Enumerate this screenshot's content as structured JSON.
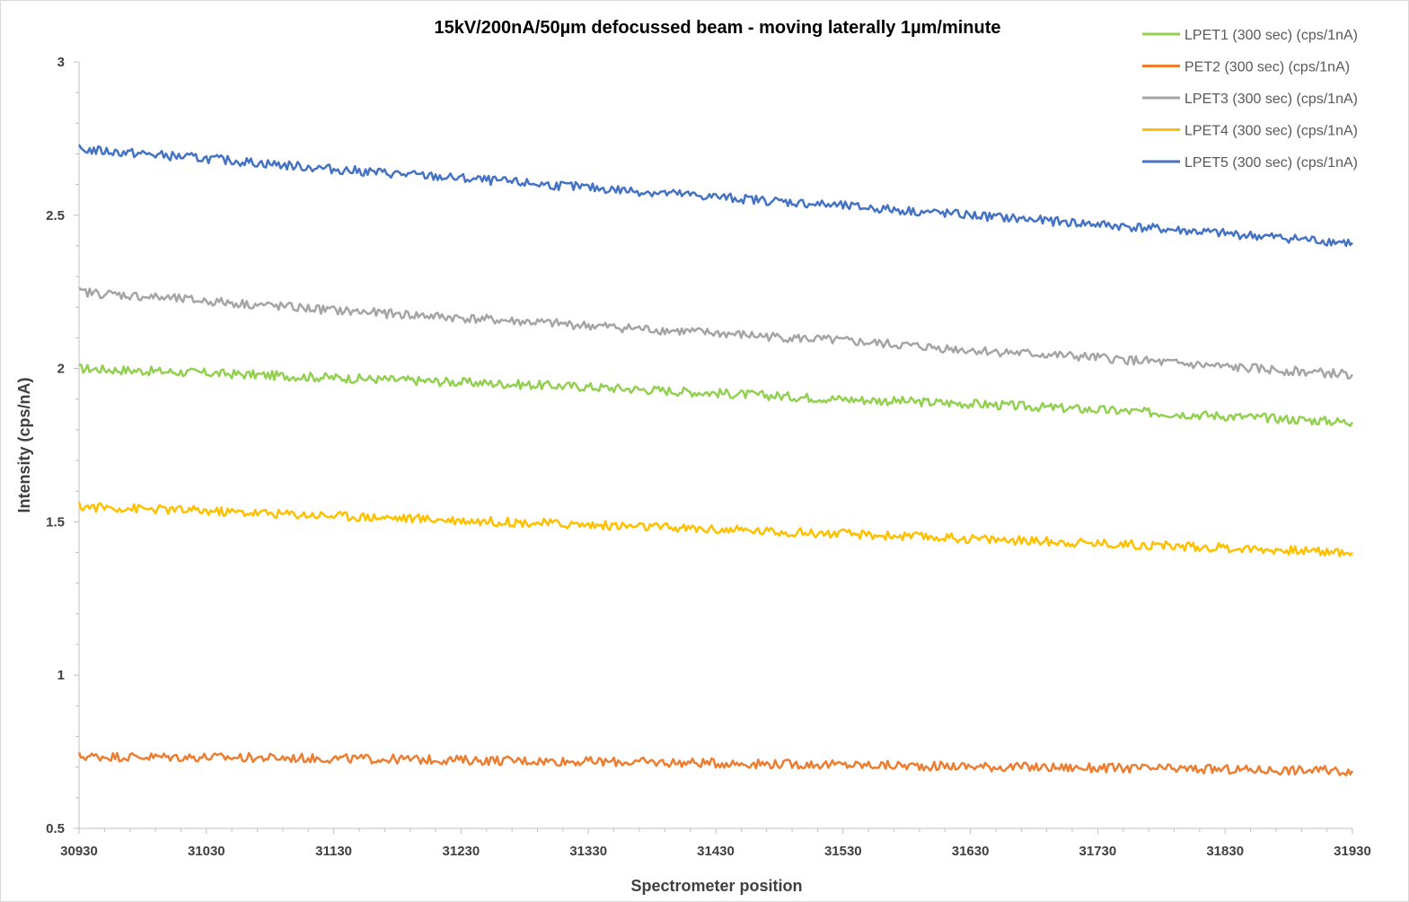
{
  "chart_data": {
    "type": "line",
    "title": "15kV/200nA/50µm defocussed beam - moving laterally 1µm/minute",
    "xlabel": "Spectrometer position",
    "ylabel": "Intensity (cps/nA)",
    "xlim": [
      30930,
      31930
    ],
    "ylim": [
      0.5,
      3
    ],
    "x_ticks": [
      "30930",
      "31030",
      "31130",
      "31230",
      "31330",
      "31430",
      "31530",
      "31630",
      "31730",
      "31830",
      "31930"
    ],
    "y_ticks": [
      "0.5",
      "1",
      "1.5",
      "2",
      "2.5",
      "3"
    ],
    "grid": false,
    "legend_position": "top-right",
    "series": [
      {
        "name": "LPET1 (300 sec) (cps/1nA)",
        "color": "#92d050",
        "x": [
          30930,
          31030,
          31130,
          31230,
          31330,
          31430,
          31530,
          31630,
          31730,
          31830,
          31930
        ],
        "values": [
          2.0,
          1.985,
          1.97,
          1.955,
          1.94,
          1.92,
          1.9,
          1.885,
          1.865,
          1.845,
          1.825
        ]
      },
      {
        "name": "PET2 (300 sec) (cps/1nA)",
        "color": "#ed7d31",
        "x": [
          30930,
          31030,
          31130,
          31230,
          31330,
          31430,
          31530,
          31630,
          31730,
          31830,
          31930
        ],
        "values": [
          0.735,
          0.732,
          0.728,
          0.723,
          0.718,
          0.713,
          0.707,
          0.702,
          0.697,
          0.692,
          0.688
        ]
      },
      {
        "name": "LPET3 (300 sec) (cps/1nA)",
        "color": "#a5a5a5",
        "x": [
          30930,
          31030,
          31130,
          31230,
          31330,
          31430,
          31530,
          31630,
          31730,
          31830,
          31930
        ],
        "values": [
          2.25,
          2.22,
          2.19,
          2.165,
          2.14,
          2.115,
          2.09,
          2.06,
          2.035,
          2.005,
          1.98
        ]
      },
      {
        "name": "LPET4 (300 sec) (cps/1nA)",
        "color": "#ffc000",
        "x": [
          30930,
          31030,
          31130,
          31230,
          31330,
          31430,
          31530,
          31630,
          31730,
          31830,
          31930
        ],
        "values": [
          1.55,
          1.535,
          1.52,
          1.505,
          1.49,
          1.475,
          1.46,
          1.445,
          1.43,
          1.415,
          1.4
        ]
      },
      {
        "name": "LPET5 (300 sec) (cps/1nA)",
        "color": "#4472c4",
        "x": [
          30930,
          31030,
          31130,
          31230,
          31330,
          31430,
          31530,
          31630,
          31730,
          31830,
          31930
        ],
        "values": [
          2.715,
          2.685,
          2.65,
          2.62,
          2.59,
          2.56,
          2.53,
          2.5,
          2.47,
          2.44,
          2.41
        ]
      }
    ]
  }
}
